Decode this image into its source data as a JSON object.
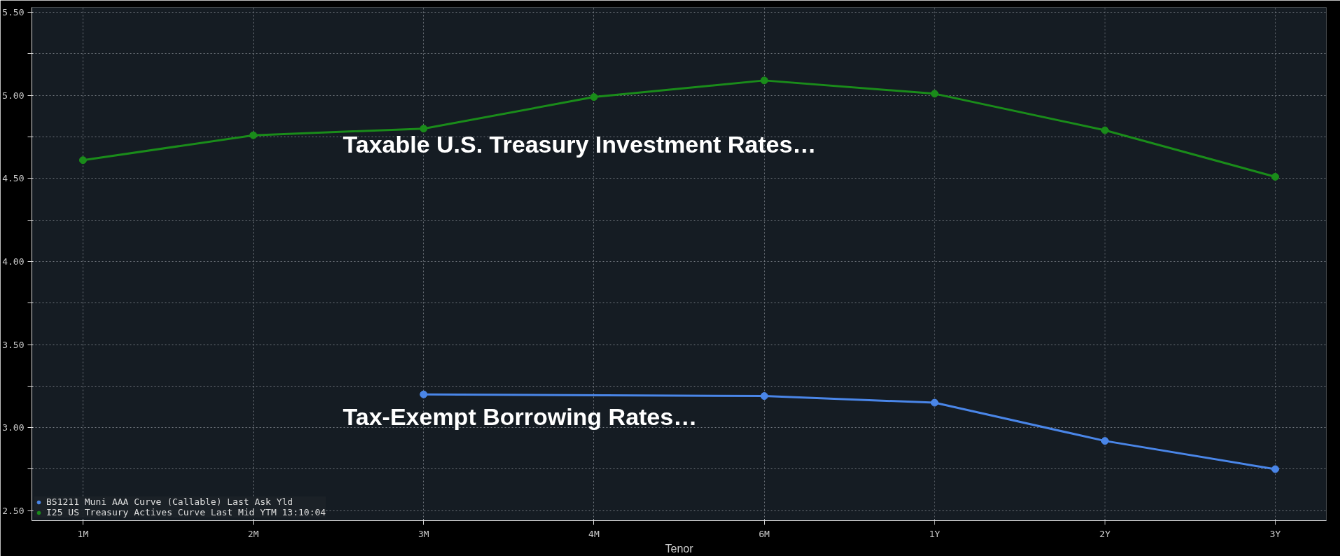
{
  "chart_data": {
    "type": "line",
    "xlabel": "Tenor",
    "categories": [
      "1M",
      "2M",
      "3M",
      "4M",
      "6M",
      "1Y",
      "2Y",
      "3Y"
    ],
    "series": [
      {
        "name": "BS1211 Muni AAA Curve (Callable) Last Ask Yld",
        "color": "#4a86e8",
        "values": [
          null,
          null,
          3.2,
          null,
          3.19,
          3.15,
          2.92,
          2.75
        ]
      },
      {
        "name": "I25 US Treasury Actives Curve Last Mid YTM 13:10:04",
        "color": "#1a8c1a",
        "values": [
          4.61,
          4.76,
          4.8,
          4.99,
          5.09,
          5.01,
          4.79,
          4.51
        ]
      }
    ],
    "ylim": [
      2.44,
      5.53
    ],
    "yticks": [
      {
        "value": 2.5,
        "label": "2.50"
      },
      {
        "value": 2.75,
        "label": null
      },
      {
        "value": 3.0,
        "label": "3.00"
      },
      {
        "value": 3.25,
        "label": null
      },
      {
        "value": 3.5,
        "label": "3.50"
      },
      {
        "value": 3.75,
        "label": null
      },
      {
        "value": 4.0,
        "label": "4.00"
      },
      {
        "value": 4.25,
        "label": null
      },
      {
        "value": 4.5,
        "label": "4.50"
      },
      {
        "value": 4.75,
        "label": null
      },
      {
        "value": 5.0,
        "label": "5.00"
      },
      {
        "value": 5.25,
        "label": null
      },
      {
        "value": 5.5,
        "label": "5.50"
      }
    ],
    "annotations": [
      "Taxable U.S. Treasury Investment Rates…",
      "Tax-Exempt Borrowing Rates…"
    ],
    "grid": true,
    "legend": "bottom left",
    "marker": "circle",
    "line_style": "solid"
  }
}
